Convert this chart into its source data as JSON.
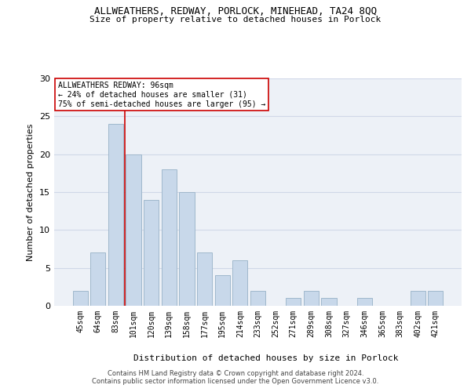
{
  "title1": "ALLWEATHERS, REDWAY, PORLOCK, MINEHEAD, TA24 8QQ",
  "title2": "Size of property relative to detached houses in Porlock",
  "xlabel": "Distribution of detached houses by size in Porlock",
  "ylabel": "Number of detached properties",
  "categories": [
    "45sqm",
    "64sqm",
    "83sqm",
    "101sqm",
    "120sqm",
    "139sqm",
    "158sqm",
    "177sqm",
    "195sqm",
    "214sqm",
    "233sqm",
    "252sqm",
    "271sqm",
    "289sqm",
    "308sqm",
    "327sqm",
    "346sqm",
    "365sqm",
    "383sqm",
    "402sqm",
    "421sqm"
  ],
  "values": [
    2,
    7,
    24,
    20,
    14,
    18,
    15,
    7,
    4,
    6,
    2,
    0,
    1,
    2,
    1,
    0,
    1,
    0,
    0,
    2,
    2
  ],
  "bar_color": "#c8d8ea",
  "bar_edge_color": "#a0b8cc",
  "vline_color": "#cc0000",
  "annotation_line1": "ALLWEATHERS REDWAY: 96sqm",
  "annotation_line2": "← 24% of detached houses are smaller (31)",
  "annotation_line3": "75% of semi-detached houses are larger (95) →",
  "annotation_box_facecolor": "#ffffff",
  "annotation_box_edgecolor": "#cc0000",
  "ylim": [
    0,
    30
  ],
  "yticks": [
    0,
    5,
    10,
    15,
    20,
    25,
    30
  ],
  "grid_color": "#d0d8e8",
  "plot_bg_color": "#edf1f7",
  "footer1": "Contains HM Land Registry data © Crown copyright and database right 2024.",
  "footer2": "Contains public sector information licensed under the Open Government Licence v3.0."
}
